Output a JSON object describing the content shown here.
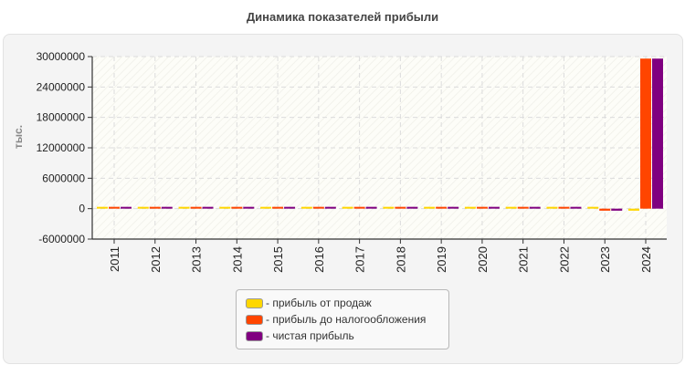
{
  "title": "Динамика показателей прибыли",
  "chart_data": {
    "type": "bar",
    "title": "Динамика показателей прибыли",
    "xlabel": "",
    "ylabel": "тыс.",
    "ylim": [
      -6000000,
      30000000
    ],
    "yticks": [
      -6000000,
      0,
      6000000,
      12000000,
      18000000,
      24000000,
      30000000
    ],
    "ytick_labels": [
      "-6000000",
      "0",
      "6000000",
      "12000000",
      "18000000",
      "24000000",
      "30000000"
    ],
    "grid": true,
    "legend_position": "bottom",
    "categories": [
      "2011",
      "2012",
      "2013",
      "2014",
      "2015",
      "2016",
      "2017",
      "2018",
      "2019",
      "2020",
      "2021",
      "2022",
      "2023",
      "2024"
    ],
    "series": [
      {
        "name": "прибыль от продаж",
        "color": "#ffd700",
        "values": [
          300000,
          300000,
          300000,
          300000,
          300000,
          300000,
          300000,
          300000,
          300000,
          300000,
          300000,
          300000,
          150000,
          -400000
        ]
      },
      {
        "name": "прибыль до налогообложения",
        "color": "#ff4500",
        "values": [
          300000,
          300000,
          300000,
          300000,
          300000,
          300000,
          300000,
          300000,
          300000,
          300000,
          300000,
          300000,
          -400000,
          29600000
        ]
      },
      {
        "name": "чистая прибыль",
        "color": "#800080",
        "values": [
          300000,
          300000,
          300000,
          300000,
          300000,
          300000,
          300000,
          300000,
          300000,
          300000,
          300000,
          300000,
          -400000,
          29600000
        ]
      }
    ]
  },
  "legend": {
    "items": [
      {
        "label": "- прибыль от продаж",
        "color": "#ffd700"
      },
      {
        "label": "- прибыль до налогообложения",
        "color": "#ff4500"
      },
      {
        "label": "- чистая прибыль",
        "color": "#800080"
      }
    ]
  }
}
